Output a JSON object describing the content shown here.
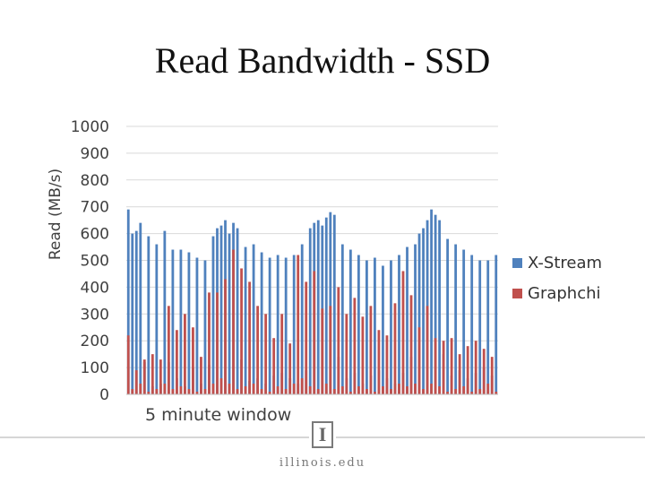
{
  "chart_data": {
    "type": "bar",
    "title": "Read Bandwidth - SSD",
    "ylabel": "Read (MB/s)",
    "xlabel": "5 minute window",
    "ylim": [
      0,
      1000
    ],
    "yticks": [
      "1000",
      "900",
      "800",
      "700",
      "600",
      "500",
      "400",
      "300",
      "200",
      "100",
      "0"
    ],
    "grid": true,
    "legend_position": "right",
    "series": [
      {
        "name": "X-Stream",
        "color": "#4f81bd",
        "values": [
          690,
          600,
          610,
          640,
          120,
          590,
          30,
          560,
          40,
          610,
          120,
          540,
          60,
          540,
          30,
          530,
          100,
          510,
          40,
          500,
          110,
          590,
          620,
          630,
          650,
          600,
          640,
          620,
          130,
          550,
          50,
          560,
          60,
          530,
          40,
          510,
          70,
          520,
          80,
          510,
          60,
          520,
          40,
          560,
          90,
          620,
          640,
          650,
          630,
          660,
          680,
          670,
          140,
          560,
          60,
          540,
          80,
          520,
          40,
          500,
          70,
          510,
          90,
          480,
          60,
          500,
          40,
          520,
          80,
          550,
          140,
          560,
          600,
          620,
          650,
          690,
          670,
          650,
          150,
          580,
          70,
          560,
          90,
          540,
          60,
          520,
          80,
          500,
          100,
          500,
          70,
          520
        ]
      },
      {
        "name": "Graphchi",
        "color": "#c0504d",
        "values": [
          220,
          20,
          90,
          40,
          130,
          10,
          150,
          20,
          130,
          40,
          330,
          20,
          240,
          30,
          300,
          20,
          250,
          10,
          140,
          20,
          380,
          40,
          380,
          60,
          430,
          40,
          540,
          20,
          470,
          30,
          420,
          40,
          330,
          20,
          300,
          10,
          210,
          30,
          300,
          20,
          190,
          40,
          520,
          60,
          420,
          30,
          460,
          20,
          320,
          40,
          330,
          20,
          400,
          30,
          300,
          10,
          360,
          30,
          290,
          20,
          330,
          10,
          240,
          30,
          220,
          20,
          340,
          40,
          460,
          30,
          370,
          40,
          250,
          20,
          330,
          40,
          210,
          30,
          200,
          10,
          210,
          20,
          150,
          30,
          180,
          10,
          200,
          20,
          170,
          40,
          140,
          10
        ]
      }
    ]
  },
  "footer": {
    "text": "illinois.edu",
    "logo_letter": "I"
  }
}
